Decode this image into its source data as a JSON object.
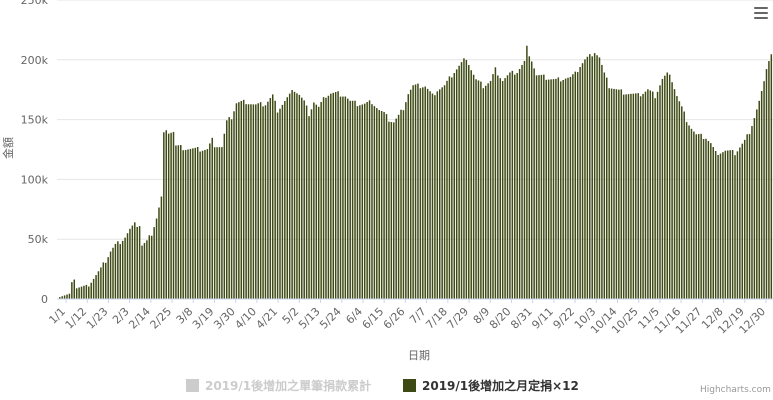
{
  "credits": "Highcharts.com",
  "chart_data": {
    "type": "bar",
    "xlabel": "日期",
    "ylabel": "金額",
    "ylim": [
      0,
      250000
    ],
    "yticks": [
      0,
      50000,
      100000,
      150000,
      200000,
      250000
    ],
    "ytick_labels": [
      "0",
      "50k",
      "100k",
      "150k",
      "200k",
      "250k"
    ],
    "grid": true,
    "legend_placement": "bottom-center",
    "xtick_labels": [
      "1/1",
      "1/12",
      "1/23",
      "2/3",
      "2/14",
      "2/25",
      "3/8",
      "3/19",
      "3/30",
      "4/10",
      "4/21",
      "5/2",
      "5/13",
      "5/24",
      "6/4",
      "6/15",
      "6/26",
      "7/7",
      "7/18",
      "7/29",
      "8/9",
      "8/20",
      "8/31",
      "9/11",
      "9/22",
      "10/3",
      "10/14",
      "10/25",
      "11/5",
      "11/16",
      "11/27",
      "12/8",
      "12/19",
      "12/30"
    ],
    "x_period": "daily, 1/1 to 12/31",
    "series": [
      {
        "name": "2019/1後增加之單筆捐款累計",
        "color": "#cccccc",
        "visible": false,
        "values": []
      },
      {
        "name": "2019/1後增加之月定捐×12",
        "color": "#3e4a14",
        "visible": true,
        "anchors": [
          [
            1,
            3000
          ],
          [
            3,
            3000
          ],
          [
            5,
            3000
          ],
          [
            6,
            12000
          ],
          [
            7,
            18000
          ],
          [
            8,
            10000
          ],
          [
            10,
            10000
          ],
          [
            12,
            10000
          ],
          [
            14,
            15000
          ],
          [
            16,
            20000
          ],
          [
            18,
            25000
          ],
          [
            20,
            32000
          ],
          [
            22,
            40000
          ],
          [
            24,
            45000
          ],
          [
            26,
            48000
          ],
          [
            28,
            52000
          ],
          [
            30,
            58000
          ],
          [
            32,
            62000
          ],
          [
            34,
            62000
          ],
          [
            35,
            45000
          ],
          [
            37,
            48000
          ],
          [
            39,
            55000
          ],
          [
            41,
            68000
          ],
          [
            43,
            85000
          ],
          [
            44,
            138000
          ],
          [
            46,
            140000
          ],
          [
            48,
            140000
          ],
          [
            49,
            128000
          ],
          [
            53,
            126000
          ],
          [
            57,
            125000
          ],
          [
            62,
            125000
          ],
          [
            64,
            133000
          ],
          [
            65,
            129000
          ],
          [
            68,
            127000
          ],
          [
            70,
            148000
          ],
          [
            72,
            152000
          ],
          [
            74,
            164000
          ],
          [
            78,
            165000
          ],
          [
            82,
            162000
          ],
          [
            86,
            163000
          ],
          [
            89,
            170000
          ],
          [
            91,
            158000
          ],
          [
            95,
            168000
          ],
          [
            98,
            175000
          ],
          [
            100,
            171000
          ],
          [
            102,
            165000
          ],
          [
            104,
            155000
          ],
          [
            106,
            165000
          ],
          [
            108,
            160000
          ],
          [
            111,
            170000
          ],
          [
            113,
            172000
          ],
          [
            116,
            172000
          ],
          [
            119,
            170000
          ],
          [
            121,
            165000
          ],
          [
            124,
            163000
          ],
          [
            127,
            163000
          ],
          [
            130,
            165000
          ],
          [
            133,
            158000
          ],
          [
            135,
            155000
          ],
          [
            137,
            150000
          ],
          [
            139,
            148000
          ],
          [
            141,
            153000
          ],
          [
            143,
            160000
          ],
          [
            145,
            172000
          ],
          [
            147,
            178000
          ],
          [
            152,
            178000
          ],
          [
            155,
            170000
          ],
          [
            157,
            175000
          ],
          [
            160,
            178000
          ],
          [
            164,
            190000
          ],
          [
            167,
            197000
          ],
          [
            169,
            202000
          ],
          [
            171,
            192000
          ],
          [
            173,
            183000
          ],
          [
            176,
            178000
          ],
          [
            179,
            182000
          ],
          [
            181,
            192000
          ],
          [
            184,
            183000
          ],
          [
            187,
            188000
          ],
          [
            190,
            190000
          ],
          [
            193,
            198000
          ],
          [
            194,
            210000
          ],
          [
            196,
            200000
          ],
          [
            198,
            187000
          ],
          [
            202,
            185000
          ],
          [
            206,
            183000
          ],
          [
            210,
            185000
          ],
          [
            212,
            185000
          ],
          [
            214,
            188000
          ],
          [
            216,
            195000
          ],
          [
            218,
            200000
          ],
          [
            220,
            203000
          ],
          [
            222,
            207000
          ],
          [
            224,
            202000
          ],
          [
            226,
            188000
          ],
          [
            228,
            178000
          ],
          [
            232,
            174000
          ],
          [
            236,
            172000
          ],
          [
            240,
            170000
          ],
          [
            244,
            175000
          ],
          [
            247,
            170000
          ],
          [
            250,
            184000
          ],
          [
            252,
            188000
          ],
          [
            254,
            183000
          ],
          [
            256,
            170000
          ],
          [
            258,
            160000
          ],
          [
            260,
            150000
          ],
          [
            262,
            143000
          ],
          [
            264,
            137000
          ],
          [
            268,
            135000
          ],
          [
            270,
            130000
          ],
          [
            272,
            122000
          ],
          [
            276,
            124000
          ],
          [
            280,
            122000
          ],
          [
            282,
            127000
          ],
          [
            284,
            132000
          ],
          [
            286,
            140000
          ],
          [
            288,
            152000
          ],
          [
            290,
            165000
          ],
          [
            292,
            180000
          ],
          [
            293,
            194000
          ],
          [
            294,
            200000
          ],
          [
            295,
            205000
          ]
        ]
      }
    ]
  }
}
